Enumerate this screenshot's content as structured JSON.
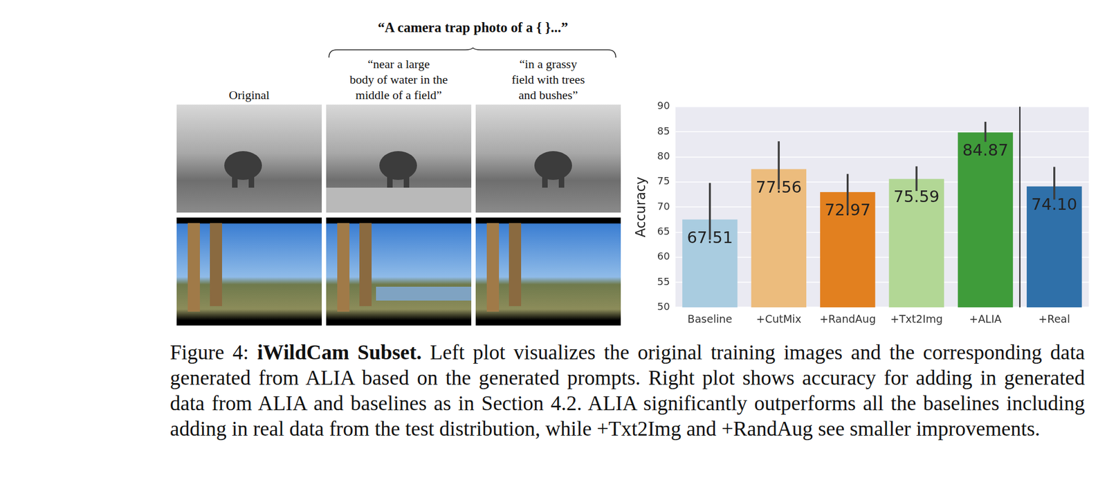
{
  "figure": {
    "prompt_header": "“A camera trap photo of a { }...”",
    "columns": [
      {
        "label": [
          "Original"
        ]
      },
      {
        "label": [
          "“near a large",
          "body of water in the",
          "middle of a field”"
        ]
      },
      {
        "label": [
          "“in a grassy",
          "field with trees",
          "and bushes”"
        ]
      }
    ]
  },
  "caption": {
    "label": "Figure 4:",
    "title": "iWildCam Subset.",
    "text": "Left plot visualizes the original training images and the corresponding data generated from ALIA based on the generated prompts. Right plot shows accuracy for adding in generated data from ALIA and baselines as in Section 4.2. ALIA significantly outperforms all the baselines including adding in real data from the test distribution, while +Txt2Img and +RandAug see smaller improvements."
  },
  "chart_data": {
    "type": "bar",
    "y_label": "Accuracy",
    "categories": [
      "Baseline",
      "+CutMix",
      "+RandAug",
      "+Txt2Img",
      "+ALIA",
      "+Real"
    ],
    "values": [
      67.51,
      77.56,
      72.97,
      75.59,
      84.87,
      74.1
    ],
    "colors": [
      "#a9cce0",
      "#ecbc7d",
      "#e2801f",
      "#b2d795",
      "#3f9c3a",
      "#2f70a9"
    ],
    "error_bars": [
      [
        63.5,
        74.8
      ],
      [
        73.5,
        83.1
      ],
      [
        68.6,
        76.6
      ],
      [
        73.2,
        78.1
      ],
      [
        83.0,
        87.0
      ],
      [
        71.5,
        78.0
      ]
    ],
    "ylim": [
      50,
      90
    ],
    "yticks": [
      50,
      55,
      60,
      65,
      70,
      75,
      80,
      85,
      90
    ],
    "grid": true,
    "data_labels": true
  }
}
